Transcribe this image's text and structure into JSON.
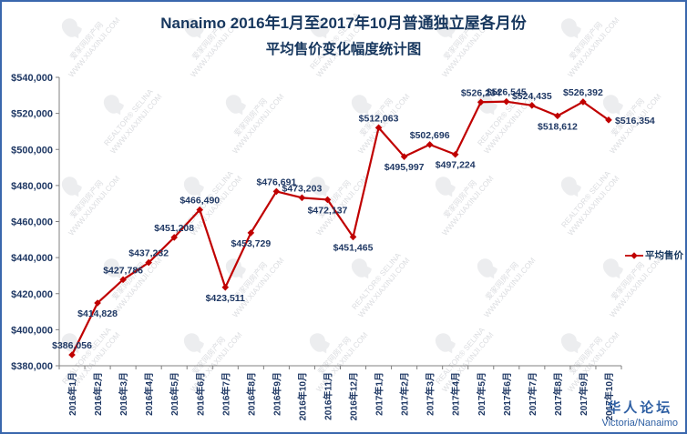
{
  "title": {
    "line1": "Nanaimo 2016年1月至2017年10月普通独立屋各月份",
    "line2": "平均售价变化幅度统计图"
  },
  "legend": {
    "label": "平均售价"
  },
  "footer": {
    "forum": "华人论坛",
    "region": "Victoria/Nanaimo"
  },
  "watermark": {
    "site_cn": "爱家网房产网",
    "site_url": "WWW.XIAXINJI.COM",
    "realtor": "REALTOR® SELINA"
  },
  "chart_data": {
    "type": "line",
    "title": "Nanaimo 2016年1月至2017年10月普通独立屋各月份 平均售价变化幅度统计图",
    "categories": [
      "2016年1月",
      "2016年2月",
      "2016年3月",
      "2016年4月",
      "2016年5月",
      "2016年6月",
      "2016年7月",
      "2016年8月",
      "2016年9月",
      "2016年10月",
      "2016年11月",
      "2016年12月",
      "2017年1月",
      "2017年2月",
      "2017年3月",
      "2017年4月",
      "2017年5月",
      "2017年6月",
      "2017年7月",
      "2017年8月",
      "2017年9月",
      "2017年10月"
    ],
    "series": [
      {
        "name": "平均售价",
        "color": "#C00000",
        "values": [
          386056,
          414828,
          427786,
          437232,
          451208,
          466490,
          423511,
          453729,
          476691,
          473203,
          472137,
          451465,
          512063,
          495997,
          502696,
          497224,
          526234,
          526545,
          524435,
          518612,
          526392,
          516354
        ]
      }
    ],
    "ylim": [
      380000,
      540000
    ],
    "ytick_step": 20000,
    "ytick_labels": [
      "$380,000",
      "$400,000",
      "$420,000",
      "$440,000",
      "$460,000",
      "$480,000",
      "$500,000",
      "$520,000",
      "$540,000"
    ],
    "grid": false,
    "legend_position": "right",
    "label_color": "#1F3864",
    "label_positions": [
      "above",
      "below",
      "above",
      "above",
      "above",
      "above",
      "below",
      "below",
      "above",
      "above",
      "below",
      "below",
      "above",
      "below",
      "above",
      "below",
      "above",
      "above",
      "above",
      "below",
      "above",
      "right"
    ]
  }
}
